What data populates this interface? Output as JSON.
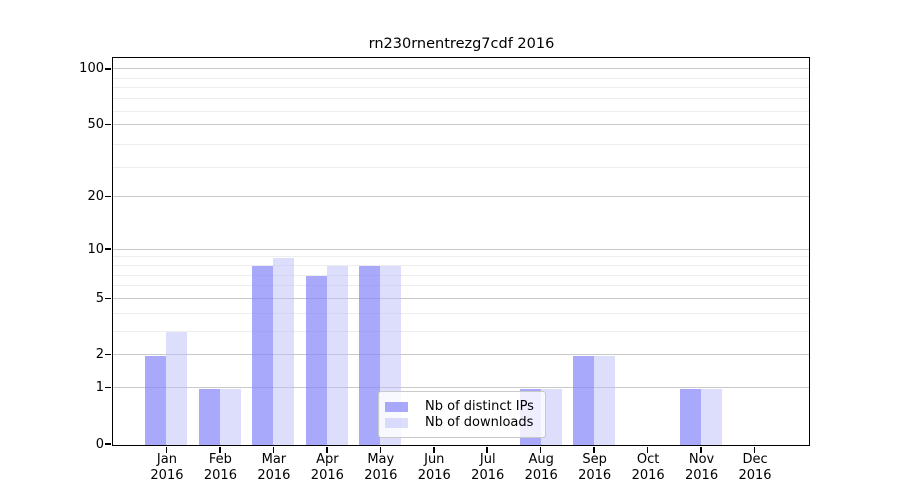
{
  "chart_data": {
    "type": "bar",
    "title": "rn230rnentrezg7cdf 2016",
    "categories": [
      "Jan",
      "Feb",
      "Mar",
      "Apr",
      "May",
      "Jun",
      "Jul",
      "Aug",
      "Sep",
      "Oct",
      "Nov",
      "Dec"
    ],
    "year": "2016",
    "series": [
      {
        "name": "Nb of distinct IPs",
        "color": "rgba(136,136,250,0.72)",
        "values": [
          2,
          1,
          8,
          7,
          8,
          0,
          0,
          1,
          2,
          0,
          1,
          0
        ]
      },
      {
        "name": "Nb of downloads",
        "color": "rgba(187,187,250,0.5)",
        "values": [
          3,
          1,
          9,
          8,
          8,
          0,
          0,
          1,
          2,
          0,
          1,
          0
        ]
      }
    ],
    "yscale": "log1p",
    "yticks": [
      0,
      1,
      2,
      5,
      10,
      20,
      50,
      100
    ],
    "minor_yticks": [
      3,
      4,
      6,
      7,
      8,
      9,
      29,
      39,
      59,
      69,
      79,
      89
    ],
    "ylim": [
      0,
      114.6
    ],
    "xlabel": "",
    "ylabel": "",
    "grid": true,
    "legend_position": "lower-center",
    "colors": {
      "major_grid": "#c9c9c9",
      "minor_grid": "#ededed",
      "axis": "#000000",
      "background": "#ffffff"
    }
  }
}
